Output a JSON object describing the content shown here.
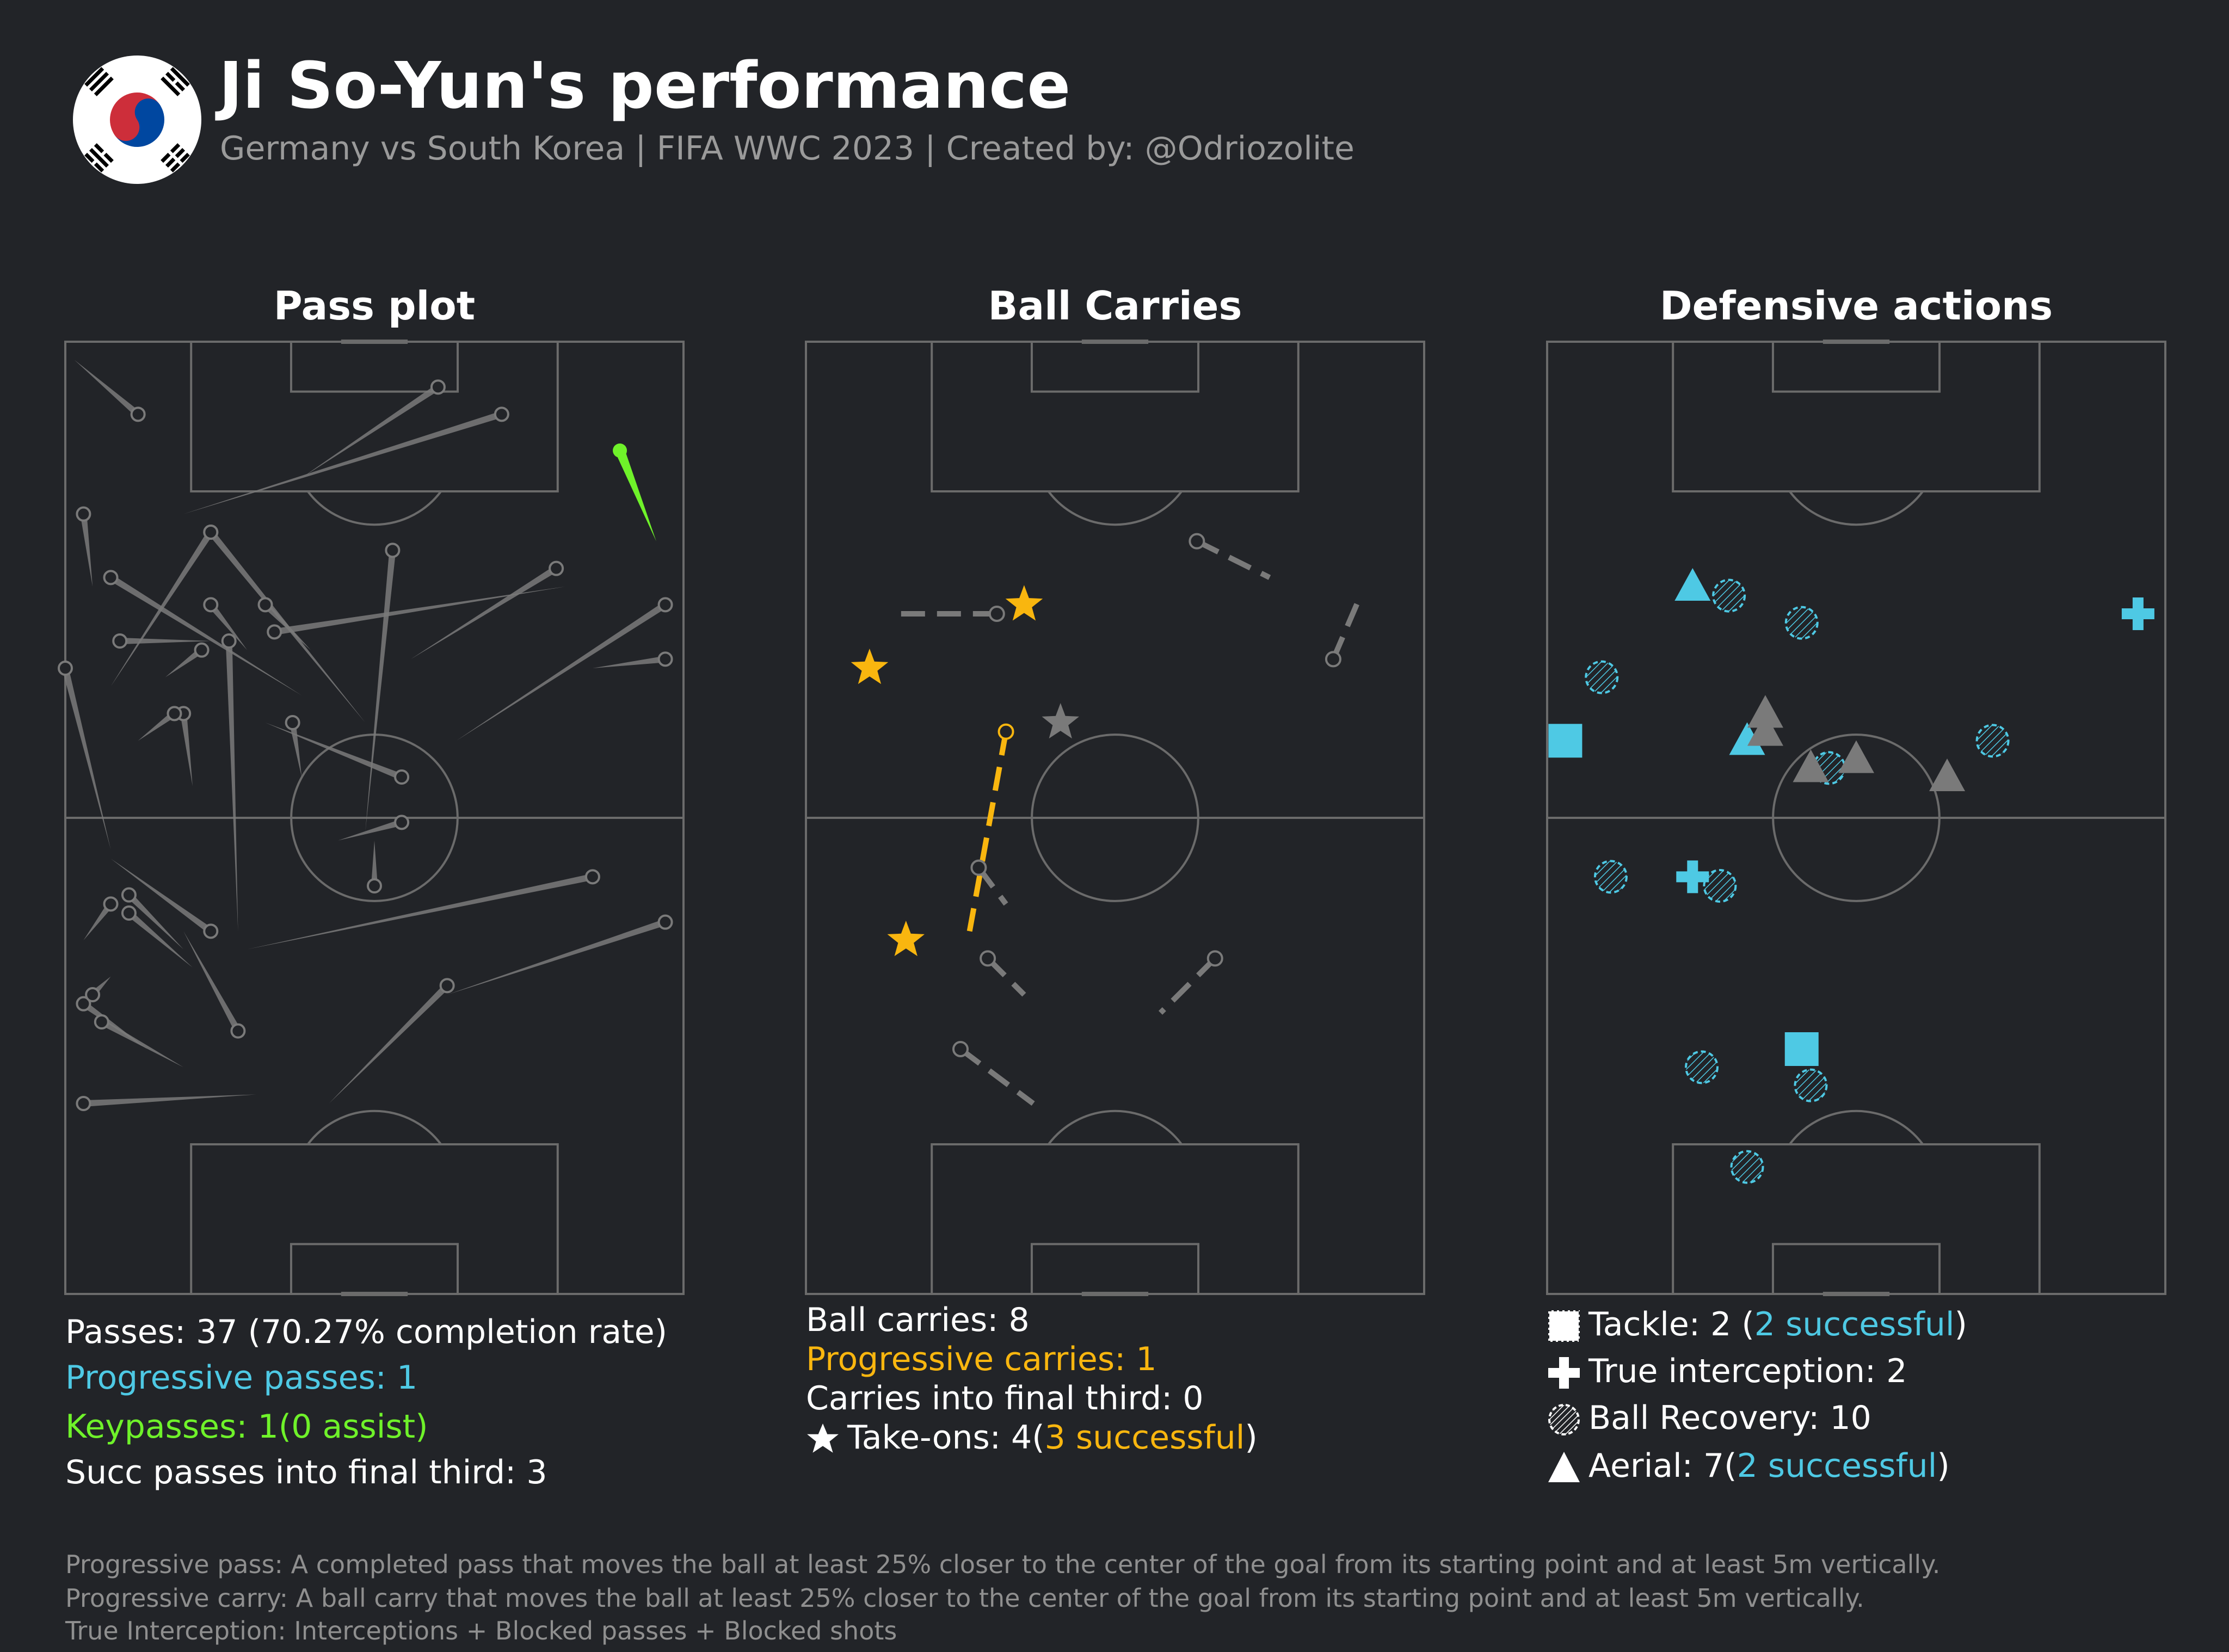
{
  "header": {
    "title": "Ji So-Yun's performance",
    "subtitle": "Germany vs South Korea | FIFA WWC 2023 | Created by: @Odriozolite",
    "flag_icon": "south-korea-flag-icon"
  },
  "colors": {
    "background": "#222428",
    "pitch_line": "#6b6b6b",
    "neutral": "#7a7a7a",
    "progressive": "#4ec9e4",
    "keypass": "#6ff22a",
    "carry_highlight": "#f9b60f",
    "text": "#ffffff",
    "muted": "#9a9a9a"
  },
  "panels": {
    "pass": {
      "title": "Pass plot",
      "stats": {
        "passes": "Passes: 37 (70.27% completion rate)",
        "progressive": "Progressive passes: 1",
        "keypasses": "Keypasses: 1(0 assist)",
        "final_third": "Succ passes into final third: 3"
      }
    },
    "carry": {
      "title": "Ball Carries",
      "stats": {
        "carries": "Ball carries: 8",
        "progressive": "Progressive carries: 1",
        "final_third": "Carries into final third: 0",
        "takeons_prefix": "Take-ons: 4(",
        "takeons_success": "3 successful",
        "takeons_suffix": ")"
      }
    },
    "defense": {
      "title": "Defensive actions",
      "stats": {
        "tackle_prefix": "Tackle: 2 (",
        "tackle_success": "2 successful",
        "tackle_suffix": ")",
        "interception": "True interception: 2",
        "recovery": "Ball Recovery: 10",
        "aerial_prefix": "Aerial: 7(",
        "aerial_success": "2 successful",
        "aerial_suffix": ")"
      }
    }
  },
  "footnotes": [
    "Progressive pass: A completed pass that moves the ball at least 25% closer to the center of the goal from its starting point and at least 5m vertically.",
    "Progressive carry: A ball carry that moves the ball at least 25% closer to the center of the goal from its starting point and at least 5m vertically.",
    "True Interception: Interceptions + Blocked passes + Blocked shots"
  ],
  "chart_data": [
    {
      "type": "scatter",
      "name": "pass-plot",
      "pitch": {
        "length": 105,
        "width": 68,
        "orientation": "vertical",
        "attack": "up"
      },
      "passes": [
        {
          "start": [
            8,
            97
          ],
          "end": [
            1,
            103
          ],
          "kind": "normal"
        },
        {
          "start": [
            41,
            100
          ],
          "end": [
            26,
            90
          ],
          "kind": "normal"
        },
        {
          "start": [
            48,
            97
          ],
          "end": [
            13,
            86
          ],
          "kind": "normal"
        },
        {
          "start": [
            61,
            93
          ],
          "end": [
            65,
            83
          ],
          "kind": "keypass"
        },
        {
          "start": [
            2,
            86
          ],
          "end": [
            3,
            78
          ],
          "kind": "normal"
        },
        {
          "start": [
            16,
            84
          ],
          "end": [
            5,
            67
          ],
          "kind": "normal"
        },
        {
          "start": [
            16,
            84
          ],
          "end": [
            33,
            63
          ],
          "kind": "normal"
        },
        {
          "start": [
            36,
            82
          ],
          "end": [
            33,
            51
          ],
          "kind": "normal"
        },
        {
          "start": [
            5,
            79
          ],
          "end": [
            26,
            66
          ],
          "kind": "normal"
        },
        {
          "start": [
            16,
            76
          ],
          "end": [
            20,
            71
          ],
          "kind": "normal"
        },
        {
          "start": [
            22,
            76
          ],
          "end": [
            27,
            71
          ],
          "kind": "normal"
        },
        {
          "start": [
            23,
            73
          ],
          "end": [
            55,
            78
          ],
          "kind": "normal"
        },
        {
          "start": [
            54,
            80
          ],
          "end": [
            38,
            70
          ],
          "kind": "normal"
        },
        {
          "start": [
            66,
            76
          ],
          "end": [
            43,
            61
          ],
          "kind": "normal"
        },
        {
          "start": [
            66,
            70
          ],
          "end": [
            58,
            69
          ],
          "kind": "normal"
        },
        {
          "start": [
            6,
            72
          ],
          "end": [
            16,
            72
          ],
          "kind": "normal"
        },
        {
          "start": [
            18,
            72
          ],
          "end": [
            19,
            40
          ],
          "kind": "normal"
        },
        {
          "start": [
            15,
            71
          ],
          "end": [
            11,
            68
          ],
          "kind": "normal"
        },
        {
          "start": [
            0,
            69
          ],
          "end": [
            5,
            49
          ],
          "kind": "normal"
        },
        {
          "start": [
            13,
            64
          ],
          "end": [
            14,
            56
          ],
          "kind": "normal"
        },
        {
          "start": [
            12,
            64
          ],
          "end": [
            8,
            61
          ],
          "kind": "normal"
        },
        {
          "start": [
            25,
            63
          ],
          "end": [
            26,
            57
          ],
          "kind": "normal"
        },
        {
          "start": [
            37,
            57
          ],
          "end": [
            22,
            63
          ],
          "kind": "normal"
        },
        {
          "start": [
            37,
            52
          ],
          "end": [
            30,
            50
          ],
          "kind": "normal"
        },
        {
          "start": [
            34,
            45
          ],
          "end": [
            34,
            50
          ],
          "kind": "normal"
        },
        {
          "start": [
            58,
            46
          ],
          "end": [
            20,
            38
          ],
          "kind": "normal"
        },
        {
          "start": [
            66,
            41
          ],
          "end": [
            42,
            33
          ],
          "kind": "normal"
        },
        {
          "start": [
            7,
            44
          ],
          "end": [
            13,
            38
          ],
          "kind": "normal"
        },
        {
          "start": [
            16,
            40
          ],
          "end": [
            5,
            48
          ],
          "kind": "normal"
        },
        {
          "start": [
            5,
            43
          ],
          "end": [
            2,
            39
          ],
          "kind": "normal"
        },
        {
          "start": [
            7,
            42
          ],
          "end": [
            14,
            36
          ],
          "kind": "normal"
        },
        {
          "start": [
            42,
            34
          ],
          "end": [
            29,
            21
          ],
          "kind": "normal"
        },
        {
          "start": [
            19,
            29
          ],
          "end": [
            13,
            40
          ],
          "kind": "normal"
        },
        {
          "start": [
            2,
            32
          ],
          "end": [
            9,
            27
          ],
          "kind": "normal"
        },
        {
          "start": [
            4,
            30
          ],
          "end": [
            13,
            25
          ],
          "kind": "normal"
        },
        {
          "start": [
            2,
            21
          ],
          "end": [
            21,
            22
          ],
          "kind": "normal"
        },
        {
          "start": [
            3,
            33
          ],
          "end": [
            5,
            35
          ],
          "kind": "normal"
        }
      ]
    },
    {
      "type": "scatter",
      "name": "ball-carries",
      "pitch": {
        "length": 105,
        "width": 68,
        "orientation": "vertical",
        "attack": "up"
      },
      "carries": [
        {
          "start": [
            21,
            75
          ],
          "end": [
            10,
            75
          ],
          "kind": "normal"
        },
        {
          "start": [
            43,
            83
          ],
          "end": [
            51,
            79
          ],
          "kind": "normal"
        },
        {
          "start": [
            58,
            70
          ],
          "end": [
            61,
            77
          ],
          "kind": "normal"
        },
        {
          "start": [
            22,
            62
          ],
          "end": [
            18,
            40
          ],
          "kind": "progressive"
        },
        {
          "start": [
            19,
            47
          ],
          "end": [
            22,
            43
          ],
          "kind": "normal"
        },
        {
          "start": [
            20,
            37
          ],
          "end": [
            24,
            33
          ],
          "kind": "normal"
        },
        {
          "start": [
            45,
            37
          ],
          "end": [
            39,
            31
          ],
          "kind": "normal"
        },
        {
          "start": [
            17,
            27
          ],
          "end": [
            25,
            21
          ],
          "kind": "normal"
        }
      ],
      "take_ons": [
        {
          "pos": [
            24,
            76
          ],
          "successful": true
        },
        {
          "pos": [
            7,
            69
          ],
          "successful": true
        },
        {
          "pos": [
            28,
            63
          ],
          "successful": false
        },
        {
          "pos": [
            11,
            39
          ],
          "successful": true
        }
      ]
    },
    {
      "type": "scatter",
      "name": "defensive-actions",
      "pitch": {
        "length": 105,
        "width": 68,
        "orientation": "vertical",
        "attack": "up"
      },
      "actions": [
        {
          "type": "tackle",
          "pos": [
            2,
            61
          ],
          "successful": true
        },
        {
          "type": "tackle",
          "pos": [
            28,
            27
          ],
          "successful": true
        },
        {
          "type": "interception",
          "pos": [
            65,
            75
          ]
        },
        {
          "type": "interception",
          "pos": [
            16,
            46
          ]
        },
        {
          "type": "recovery",
          "pos": [
            20,
            77
          ]
        },
        {
          "type": "recovery",
          "pos": [
            28,
            74
          ]
        },
        {
          "type": "recovery",
          "pos": [
            6,
            68
          ]
        },
        {
          "type": "recovery",
          "pos": [
            49,
            61
          ]
        },
        {
          "type": "recovery",
          "pos": [
            31,
            58
          ]
        },
        {
          "type": "recovery",
          "pos": [
            7,
            46
          ]
        },
        {
          "type": "recovery",
          "pos": [
            19,
            45
          ]
        },
        {
          "type": "recovery",
          "pos": [
            17,
            25
          ]
        },
        {
          "type": "recovery",
          "pos": [
            29,
            23
          ]
        },
        {
          "type": "recovery",
          "pos": [
            22,
            14
          ]
        },
        {
          "type": "aerial",
          "pos": [
            16,
            78
          ],
          "successful": true
        },
        {
          "type": "aerial",
          "pos": [
            22,
            61
          ],
          "successful": true
        },
        {
          "type": "aerial",
          "pos": [
            24,
            64
          ],
          "successful": false
        },
        {
          "type": "aerial",
          "pos": [
            24,
            62
          ],
          "successful": false
        },
        {
          "type": "aerial",
          "pos": [
            34,
            59
          ],
          "successful": false
        },
        {
          "type": "aerial",
          "pos": [
            29,
            58
          ],
          "successful": false
        },
        {
          "type": "aerial",
          "pos": [
            44,
            57
          ],
          "successful": false
        }
      ]
    }
  ]
}
